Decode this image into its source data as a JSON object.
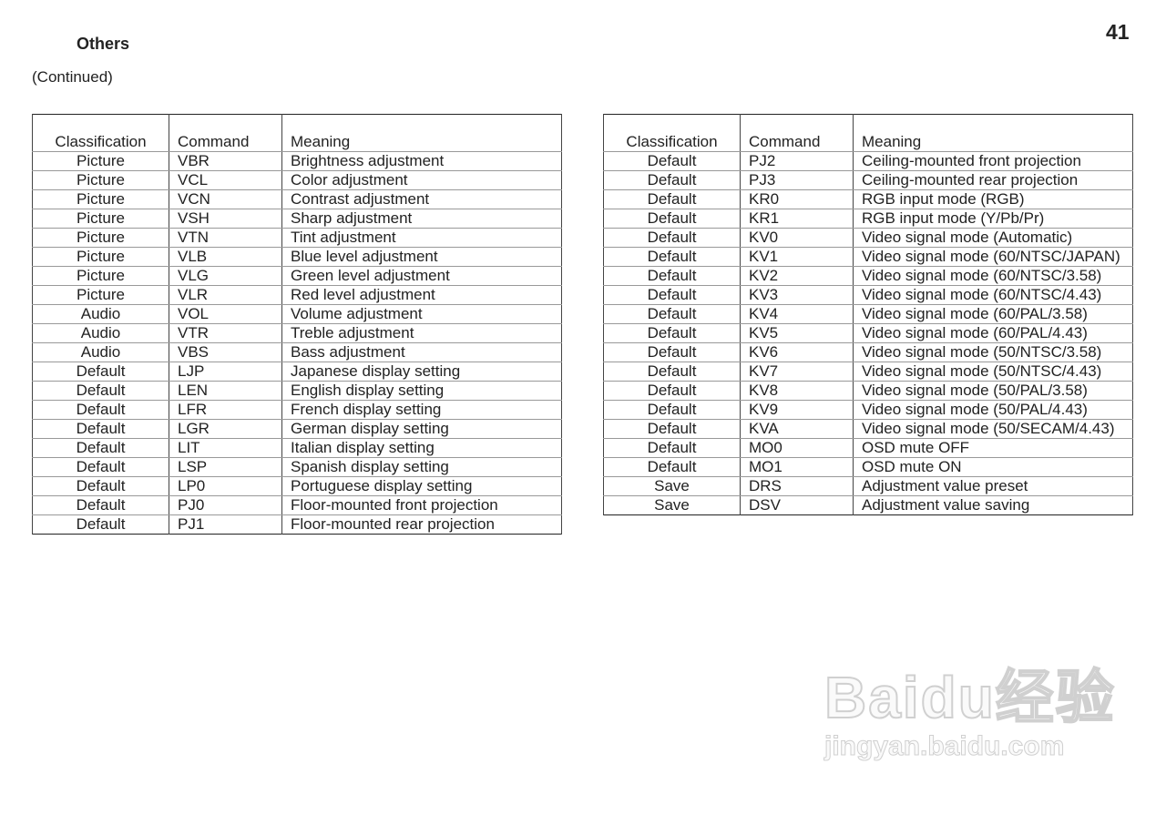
{
  "page": {
    "section_title": "Others",
    "page_number": "41",
    "continued": "(Continued)"
  },
  "headers": [
    "Classification",
    "Command",
    "Meaning"
  ],
  "left_rows": [
    [
      "Picture",
      "VBR",
      "Brightness adjustment"
    ],
    [
      "Picture",
      "VCL",
      "Color adjustment"
    ],
    [
      "Picture",
      "VCN",
      "Contrast adjustment"
    ],
    [
      "Picture",
      "VSH",
      "Sharp adjustment"
    ],
    [
      "Picture",
      "VTN",
      "Tint adjustment"
    ],
    [
      "Picture",
      "VLB",
      "Blue level adjustment"
    ],
    [
      "Picture",
      "VLG",
      "Green level adjustment"
    ],
    [
      "Picture",
      "VLR",
      "Red level adjustment"
    ],
    [
      "Audio",
      "VOL",
      "Volume adjustment"
    ],
    [
      "Audio",
      "VTR",
      "Treble adjustment"
    ],
    [
      "Audio",
      "VBS",
      "Bass adjustment"
    ],
    [
      "Default",
      "LJP",
      "Japanese display setting"
    ],
    [
      "Default",
      "LEN",
      "English display setting"
    ],
    [
      "Default",
      "LFR",
      "French display setting"
    ],
    [
      "Default",
      "LGR",
      "German display setting"
    ],
    [
      "Default",
      "LIT",
      "Italian display setting"
    ],
    [
      "Default",
      "LSP",
      "Spanish display setting"
    ],
    [
      "Default",
      "LP0",
      "Portuguese display setting"
    ],
    [
      "Default",
      "PJ0",
      "Floor-mounted front projection"
    ],
    [
      "Default",
      "PJ1",
      "Floor-mounted rear projection"
    ]
  ],
  "right_rows": [
    [
      "Default",
      "PJ2",
      "Ceiling-mounted front projection"
    ],
    [
      "Default",
      "PJ3",
      "Ceiling-mounted rear projection"
    ],
    [
      "Default",
      "KR0",
      "RGB input mode (RGB)"
    ],
    [
      "Default",
      "KR1",
      "RGB input mode (Y/Pb/Pr)"
    ],
    [
      "Default",
      "KV0",
      "Video signal mode (Automatic)"
    ],
    [
      "Default",
      "KV1",
      "Video signal mode (60/NTSC/JAPAN)"
    ],
    [
      "Default",
      "KV2",
      "Video signal mode (60/NTSC/3.58)"
    ],
    [
      "Default",
      "KV3",
      "Video signal mode (60/NTSC/4.43)"
    ],
    [
      "Default",
      "KV4",
      "Video signal mode (60/PAL/3.58)"
    ],
    [
      "Default",
      "KV5",
      "Video signal mode (60/PAL/4.43)"
    ],
    [
      "Default",
      "KV6",
      "Video signal mode (50/NTSC/3.58)"
    ],
    [
      "Default",
      "KV7",
      "Video signal mode (50/NTSC/4.43)"
    ],
    [
      "Default",
      "KV8",
      "Video signal mode (50/PAL/3.58)"
    ],
    [
      "Default",
      "KV9",
      "Video signal mode (50/PAL/4.43)"
    ],
    [
      "Default",
      "KVA",
      "Video signal mode (50/SECAM/4.43)"
    ],
    [
      "Default",
      "MO0",
      "OSD mute OFF"
    ],
    [
      "Default",
      "MO1",
      "OSD mute ON"
    ],
    [
      "Save",
      "DRS",
      "Adjustment value preset"
    ],
    [
      "Save",
      "DSV",
      "Adjustment value saving"
    ]
  ],
  "watermark": {
    "logo": "Baidu经验",
    "url": "jingyan.baidu.com"
  }
}
